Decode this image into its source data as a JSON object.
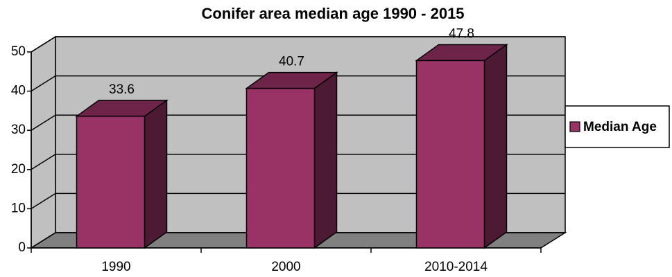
{
  "chart_data": {
    "type": "bar3d",
    "title": "Conifer area median age 1990 - 2015",
    "categories": [
      "1990",
      "2000",
      "2010-2014"
    ],
    "series": [
      {
        "name": "Median Age",
        "color": "#993366",
        "values": [
          33.6,
          40.7,
          47.8
        ]
      }
    ],
    "ylim": [
      0,
      50
    ],
    "yticks": [
      0,
      10,
      20,
      30,
      40,
      50
    ],
    "grid": true,
    "legend": "right"
  }
}
